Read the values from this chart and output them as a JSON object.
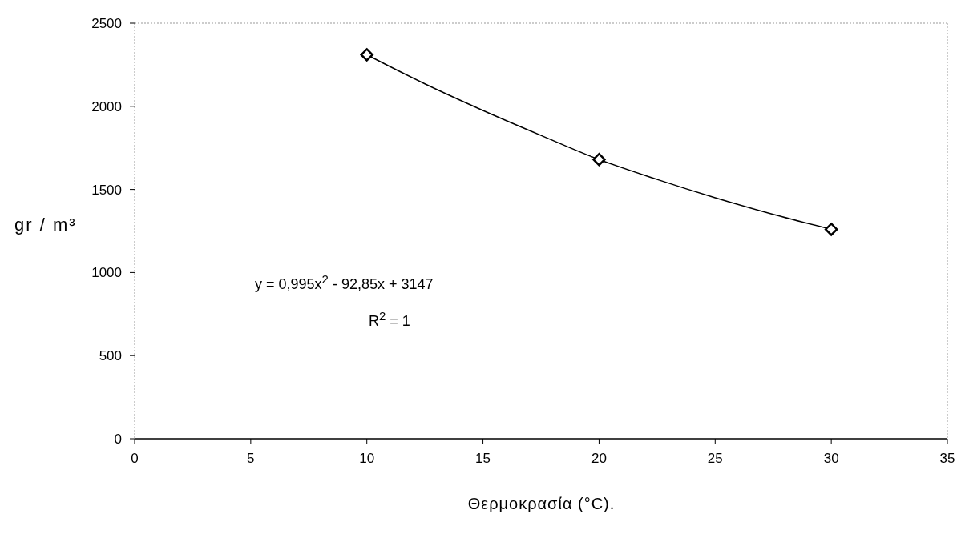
{
  "chart_data": {
    "type": "scatter",
    "xlabel": "Θερμοκρασία (°C).",
    "ylabel": "gr / m³",
    "annotations": [
      "y = 0,995x$^{2}$ - 92,85x + 3147",
      "R$^{2}$ = 1"
    ],
    "series": [
      {
        "color": "#000000",
        "marker": "diamond",
        "x": [
          10,
          20,
          30
        ],
        "values": [
          2310,
          1680,
          1260
        ]
      },
      {
        "type": "line",
        "color": "#000000",
        "marker": "none",
        "x": [
          10,
          12.5,
          15,
          17.5,
          20,
          22.5,
          25,
          27.5,
          30
        ],
        "values": [
          2310,
          2135,
          1975,
          1825,
          1680,
          1560,
          1450,
          1350,
          1260
        ]
      }
    ],
    "xlim": [
      0,
      35
    ],
    "xticks": [
      0,
      5,
      10,
      15,
      20,
      25,
      30,
      35
    ],
    "ylim": [
      0,
      2500
    ],
    "yticks": [
      0,
      500,
      1000,
      1500,
      2000,
      2500
    ],
    "grid": false,
    "legend": false
  }
}
